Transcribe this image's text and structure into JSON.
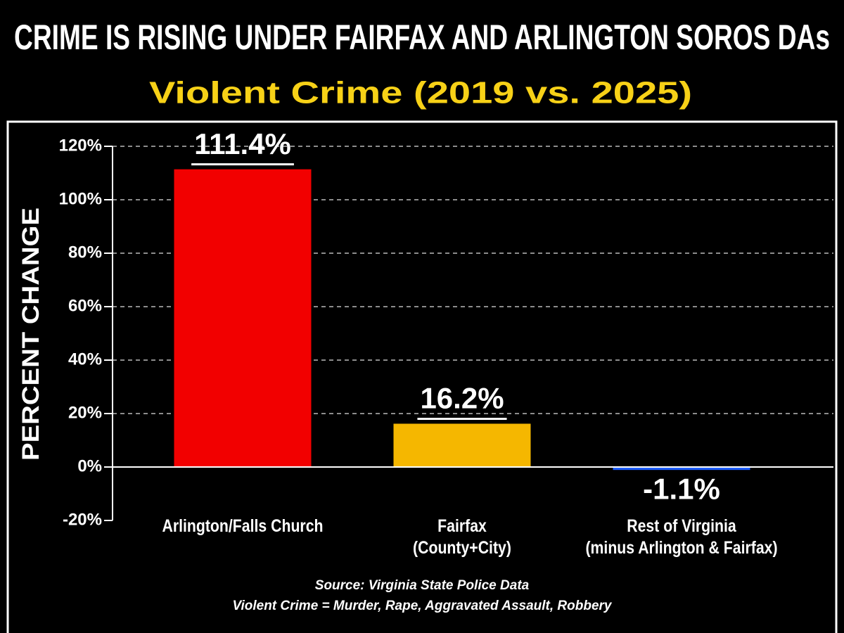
{
  "chart_data": {
    "type": "bar",
    "title": "CRIME IS RISING UNDER FAIRFAX AND ARLINGTON SOROS DAs",
    "subtitle": "Violent Crime (2019 vs. 2025)",
    "y_label": "PERCENT CHANGE",
    "categories": [
      "Arlington/Falls Church",
      "Fairfax\n(County+City)",
      "Rest of Virginia\n(minus Arlington & Fairfax)"
    ],
    "values": [
      111.4,
      16.2,
      -1.1
    ],
    "value_labels": [
      "111.4%",
      "16.2%",
      "-1.1%"
    ],
    "colors": [
      "#f20000",
      "#f5b700",
      "#1d5cff"
    ],
    "ylim": [
      -20,
      120
    ],
    "yticks": [
      {
        "value": -20,
        "label": "-20%"
      },
      {
        "value": 0,
        "label": "0%"
      },
      {
        "value": 20,
        "label": "20%"
      },
      {
        "value": 40,
        "label": "40%"
      },
      {
        "value": 60,
        "label": "60%"
      },
      {
        "value": 80,
        "label": "80%"
      },
      {
        "value": 100,
        "label": "100%"
      },
      {
        "value": 120,
        "label": "120%"
      }
    ],
    "grid": true,
    "source": "Source: Virginia State Police Data",
    "note": "Violent Crime = Murder, Rape, Aggravated Assault, Robbery"
  }
}
